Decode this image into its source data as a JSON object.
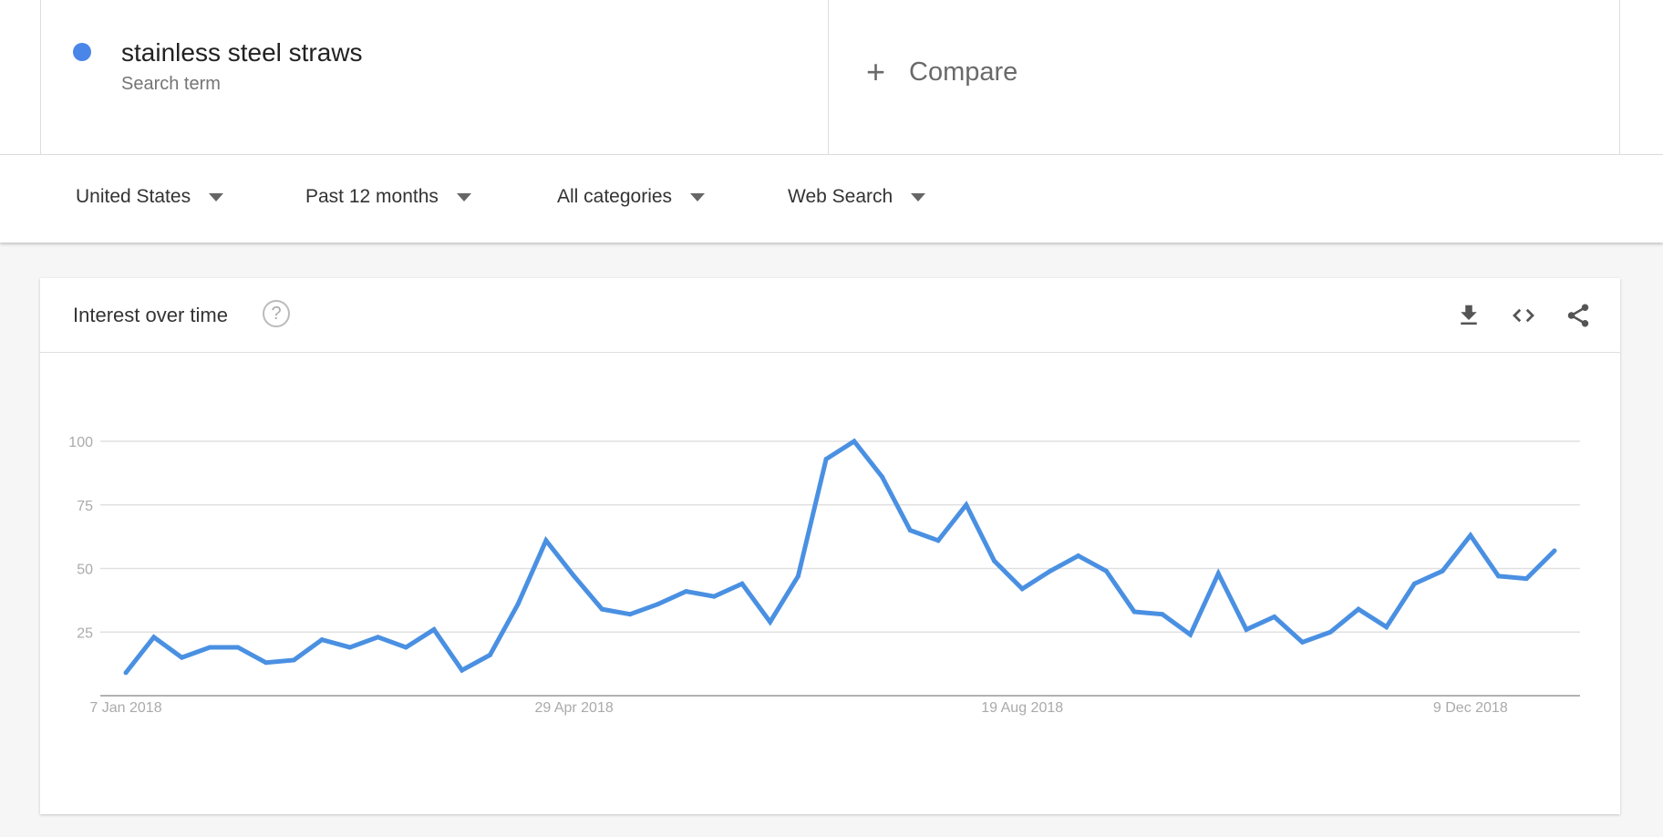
{
  "search": {
    "term": "stainless steel straws",
    "term_type": "Search term",
    "dot_color": "#4a86e8",
    "compare_label": "Compare",
    "compare_icon": "plus-icon"
  },
  "filters": [
    {
      "label": "United States"
    },
    {
      "label": "Past 12 months"
    },
    {
      "label": "All categories"
    },
    {
      "label": "Web Search"
    }
  ],
  "card": {
    "title": "Interest over time",
    "icons": [
      "help-icon",
      "download-icon",
      "embed-code-icon",
      "share-icon"
    ]
  },
  "chart_data": {
    "type": "line",
    "title": "",
    "xlabel": "",
    "ylabel": "",
    "ylim": [
      0,
      100
    ],
    "yticks": [
      25,
      50,
      75,
      100
    ],
    "x_tick_labels": [
      {
        "index": 0,
        "label": "7 Jan 2018"
      },
      {
        "index": 16,
        "label": "29 Apr 2018"
      },
      {
        "index": 32,
        "label": "19 Aug 2018"
      },
      {
        "index": 48,
        "label": "9 Dec 2018"
      }
    ],
    "grid": true,
    "color": "#4a90e2",
    "series": [
      {
        "values": [
          9,
          23,
          15,
          19,
          19,
          13,
          14,
          22,
          19,
          23,
          19,
          26,
          10,
          16,
          36,
          61,
          47,
          34,
          32,
          36,
          41,
          39,
          44,
          29,
          47,
          93,
          100,
          86,
          65,
          61,
          75,
          53,
          42,
          49,
          55,
          49,
          33,
          32,
          24,
          48,
          26,
          31,
          21,
          25,
          34,
          27,
          44,
          49,
          63,
          47,
          46,
          57
        ]
      }
    ]
  }
}
